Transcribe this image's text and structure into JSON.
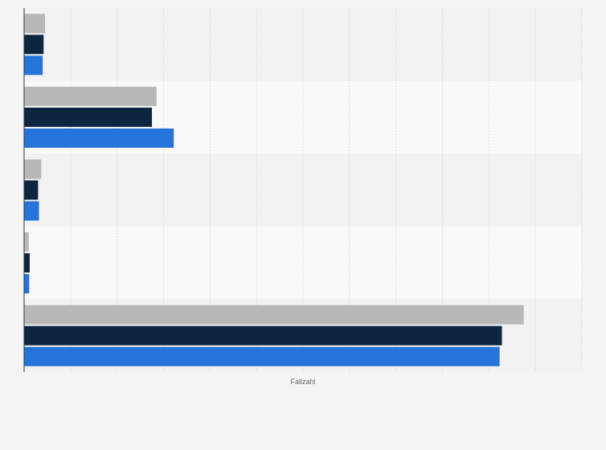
{
  "chart_data": {
    "type": "bar",
    "orientation": "horizontal",
    "categories": [
      "",
      "",
      "",
      "",
      ""
    ],
    "series": [
      {
        "color": "#b8b8b8",
        "values": [
          45,
          285,
          37,
          10,
          1075
        ]
      },
      {
        "color": "#0e253f",
        "values": [
          42,
          275,
          30,
          12,
          1028
        ]
      },
      {
        "color": "#2673d9",
        "values": [
          40,
          322,
          32,
          11,
          1023
        ]
      }
    ],
    "xlabel": "Fallzahl",
    "ylabel": "",
    "xlim": [
      0,
      1200
    ],
    "grid": true,
    "legend": false
  }
}
